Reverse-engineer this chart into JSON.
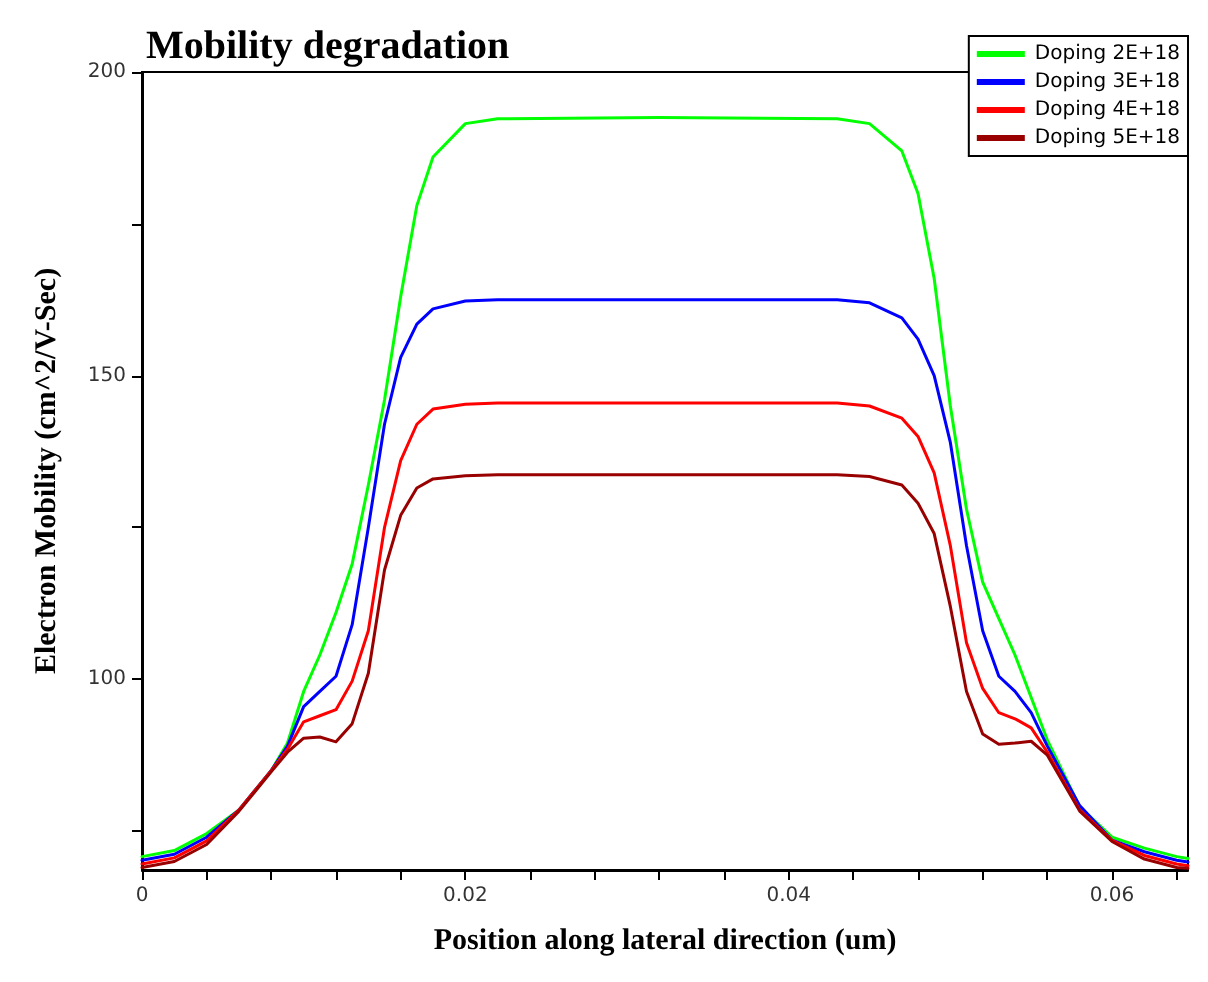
{
  "chart_data": {
    "type": "line",
    "title": "Mobility degradation",
    "xlabel": "Position along lateral direction (um)",
    "ylabel": "Electron Mobility (cm^2/V-Sec)",
    "x": [
      0,
      0.002,
      0.004,
      0.006,
      0.008,
      0.009,
      0.01,
      0.011,
      0.012,
      0.013,
      0.014,
      0.015,
      0.016,
      0.017,
      0.018,
      0.02,
      0.022,
      0.032,
      0.043,
      0.045,
      0.047,
      0.048,
      0.049,
      0.05,
      0.051,
      0.052,
      0.053,
      0.054,
      0.055,
      0.056,
      0.058,
      0.06,
      0.062,
      0.064,
      0.0647
    ],
    "series": [
      {
        "name": "Doping 2E+18",
        "color": "#00ff00",
        "values": [
          70.8,
          71.8,
          74.6,
          78.5,
          85,
          89.5,
          98,
          104,
          111,
          119,
          132,
          146,
          163,
          178,
          186,
          191.5,
          192.3,
          192.5,
          192.3,
          191.5,
          187,
          180,
          166,
          145,
          128,
          116,
          110,
          104,
          97,
          90,
          79,
          74,
          72.2,
          70.8,
          70.5
        ]
      },
      {
        "name": "Doping 3E+18",
        "color": "#0000ff",
        "values": [
          70.2,
          71.2,
          74.0,
          78.5,
          85,
          89,
          95.5,
          98,
          100.5,
          109,
          125,
          142,
          153,
          158.5,
          161,
          162.3,
          162.5,
          162.5,
          162.5,
          162,
          159.5,
          156,
          150,
          139,
          122,
          108,
          100.5,
          98,
          94.5,
          89,
          79.2,
          73.5,
          71.6,
          70.2,
          69.9
        ]
      },
      {
        "name": "Doping 4E+18",
        "color": "#ff0000",
        "values": [
          69.6,
          70.6,
          73.4,
          78.5,
          85,
          88.5,
          93,
          94,
          95,
          99.7,
          108,
          125,
          136,
          142,
          144.5,
          145.3,
          145.5,
          145.5,
          145.5,
          145,
          143,
          140,
          134,
          122,
          106,
          98.5,
          94.5,
          93.5,
          92,
          88,
          78.5,
          73.5,
          71.0,
          69.6,
          69.3
        ]
      },
      {
        "name": "Doping 5E+18",
        "color": "#990000",
        "values": [
          69.0,
          70.0,
          72.8,
          78.3,
          84.8,
          88,
          90.3,
          90.5,
          89.7,
          92.7,
          101,
          118,
          127,
          131.5,
          133,
          133.5,
          133.7,
          133.7,
          133.7,
          133.4,
          132,
          129,
          124,
          112,
          98,
          91,
          89.3,
          89.5,
          89.8,
          87.5,
          78.3,
          73.3,
          70.4,
          69.0,
          68.9
        ]
      }
    ],
    "xlim": [
      0,
      0.0647
    ],
    "xticks": [
      0,
      {
        "value": 0.004,
        "label": null
      },
      {
        "value": 0.008,
        "label": null
      },
      {
        "value": 0.012,
        "label": null
      },
      {
        "value": 0.016,
        "label": null
      },
      0.02,
      {
        "value": 0.024,
        "label": null
      },
      {
        "value": 0.028,
        "label": null
      },
      {
        "value": 0.032,
        "label": null
      },
      {
        "value": 0.036,
        "label": null
      },
      0.04,
      {
        "value": 0.044,
        "label": null
      },
      {
        "value": 0.048,
        "label": null
      },
      {
        "value": 0.052,
        "label": null
      },
      {
        "value": 0.056,
        "label": null
      },
      0.06,
      {
        "value": 0.064,
        "label": null
      }
    ],
    "ylim": [
      68.6,
      200
    ],
    "yticks": [
      {
        "value": 75,
        "label": null
      },
      100,
      {
        "value": 125,
        "label": null
      },
      150,
      {
        "value": 175,
        "label": null
      },
      200
    ],
    "grid": false,
    "legend": "top right",
    "marker": "none",
    "line_style": "solid"
  }
}
